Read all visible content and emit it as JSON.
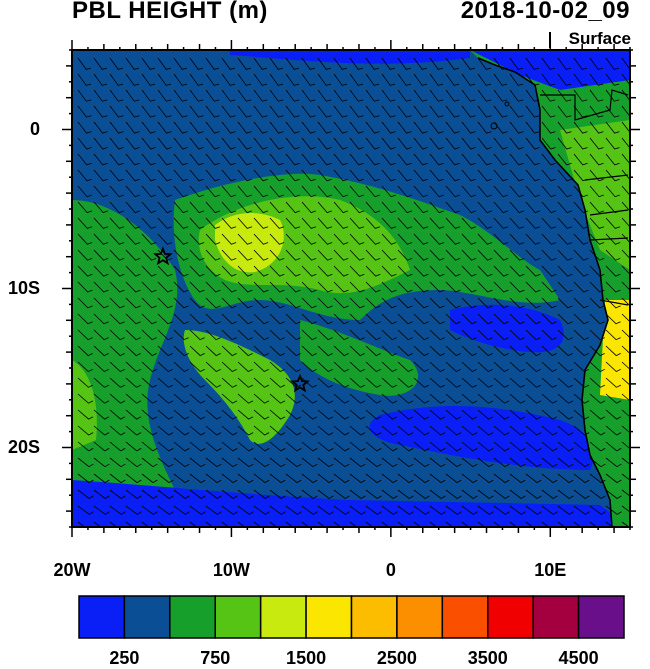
{
  "header": {
    "title": "PBL HEIGHT (m)",
    "valid_time": "2018-10-02_09",
    "level": "Surface"
  },
  "map": {
    "variable": "PBL HEIGHT",
    "units": "m",
    "extent": {
      "lon_min": -20,
      "lon_max": 15,
      "lat_min": -25,
      "lat_max": 5
    },
    "lon_ticks": [
      {
        "value": -20,
        "label": "20W"
      },
      {
        "value": -10,
        "label": "10W"
      },
      {
        "value": 0,
        "label": "0"
      },
      {
        "value": 10,
        "label": "10E"
      }
    ],
    "lat_ticks": [
      {
        "value": 0,
        "label": "0"
      },
      {
        "value": -10,
        "label": "10S"
      },
      {
        "value": -20,
        "label": "20S"
      }
    ],
    "overlay": "wind barbs",
    "markers": [
      {
        "type": "star",
        "lon": -14.3,
        "lat": -8.0
      },
      {
        "type": "star",
        "lon": -5.7,
        "lat": -16.0
      }
    ]
  },
  "colorbar": {
    "colors": [
      "#0a1ff5",
      "#0a4f96",
      "#179f2c",
      "#55c415",
      "#c8ea0f",
      "#fae600",
      "#fcbc00",
      "#fc8f00",
      "#fb4f00",
      "#f00000",
      "#a40040",
      "#6a0f8a"
    ],
    "labels": [
      {
        "boundary": 1,
        "text": "250"
      },
      {
        "boundary": 3,
        "text": "750"
      },
      {
        "boundary": 5,
        "text": "1500"
      },
      {
        "boundary": 7,
        "text": "2500"
      },
      {
        "boundary": 9,
        "text": "3500"
      },
      {
        "boundary": 11,
        "text": "4500"
      }
    ]
  }
}
